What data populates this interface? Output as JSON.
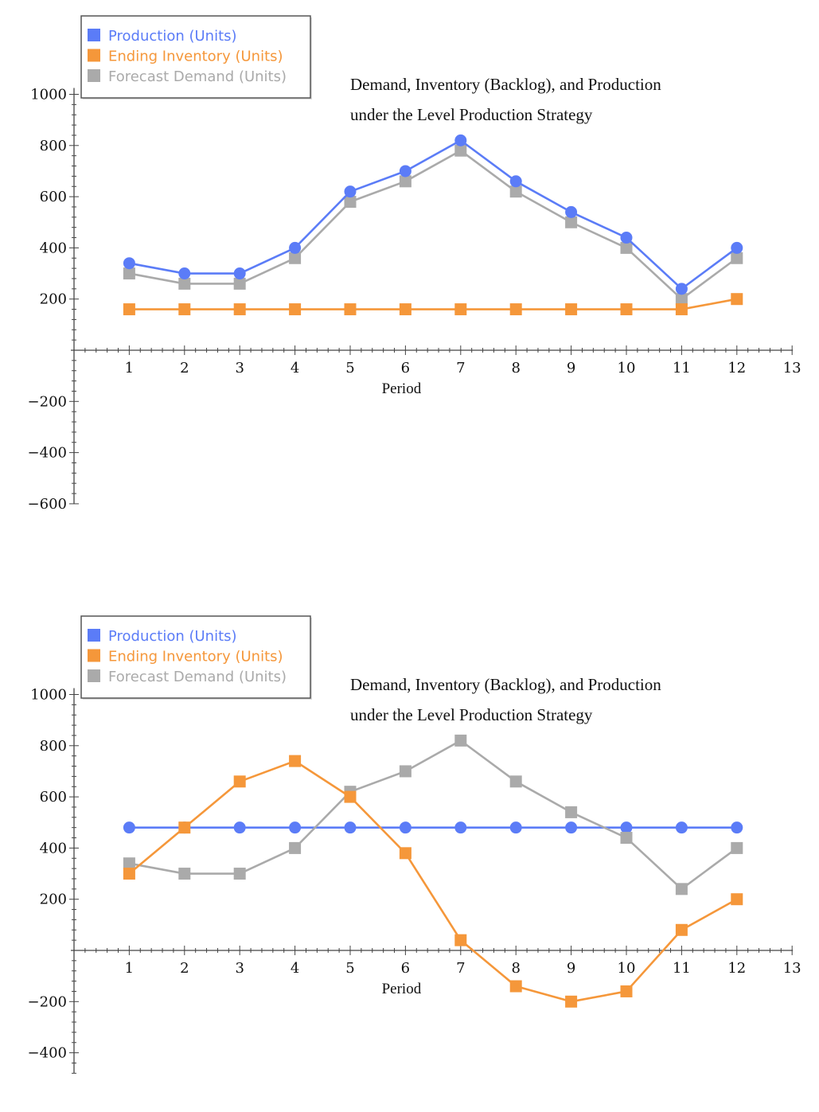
{
  "colors": {
    "production": "#5b7cf7",
    "inventory": "#f5973a",
    "demand": "#aaaaaa",
    "axis": "#444444",
    "legend_border": "#555555"
  },
  "chart_data": [
    {
      "type": "line",
      "title_line1": "Demand, Inventory (Backlog), and Production",
      "title_line2": "under the Level Production Strategy",
      "xlabel": "Period",
      "ylabel": "",
      "xlim": [
        0,
        13
      ],
      "ylim": [
        -600,
        1000
      ],
      "x_ticks": [
        1,
        2,
        3,
        4,
        5,
        6,
        7,
        8,
        9,
        10,
        11,
        12,
        13
      ],
      "y_ticks": [
        -600,
        -400,
        -200,
        200,
        400,
        600,
        800,
        1000
      ],
      "y_tick_labels": [
        "−600",
        "−400",
        "−200",
        "200",
        "400",
        "600",
        "800",
        "1000"
      ],
      "legend": [
        "Production (Units)",
        "Ending Inventory (Units)",
        "Forecast Demand (Units)"
      ],
      "series": [
        {
          "name": "Production (Units)",
          "marker": "circle",
          "color": "#5b7cf7",
          "x": [
            1,
            2,
            3,
            4,
            5,
            6,
            7,
            8,
            9,
            10,
            11,
            12
          ],
          "values": [
            340,
            300,
            300,
            400,
            620,
            700,
            820,
            660,
            540,
            440,
            240,
            400
          ]
        },
        {
          "name": "Ending Inventory (Units)",
          "marker": "square",
          "color": "#f5973a",
          "x": [
            1,
            2,
            3,
            4,
            5,
            6,
            7,
            8,
            9,
            10,
            11,
            12
          ],
          "values": [
            160,
            160,
            160,
            160,
            160,
            160,
            160,
            160,
            160,
            160,
            160,
            200
          ]
        },
        {
          "name": "Forecast Demand (Units)",
          "marker": "square",
          "color": "#aaaaaa",
          "x": [
            1,
            2,
            3,
            4,
            5,
            6,
            7,
            8,
            9,
            10,
            11,
            12
          ],
          "values": [
            300,
            260,
            260,
            360,
            580,
            660,
            780,
            620,
            500,
            400,
            200,
            360
          ]
        }
      ]
    },
    {
      "type": "line",
      "title_line1": "Demand, Inventory (Backlog), and Production",
      "title_line2": "under the Level Production Strategy",
      "xlabel": "Period",
      "ylabel": "",
      "xlim": [
        0,
        13
      ],
      "ylim": [
        -480,
        1000
      ],
      "x_ticks": [
        1,
        2,
        3,
        4,
        5,
        6,
        7,
        8,
        9,
        10,
        11,
        12,
        13
      ],
      "y_ticks": [
        -400,
        -200,
        200,
        400,
        600,
        800,
        1000
      ],
      "y_tick_labels": [
        "−400",
        "−200",
        "200",
        "400",
        "600",
        "800",
        "1000"
      ],
      "legend": [
        "Production (Units)",
        "Ending Inventory (Units)",
        "Forecast Demand (Units)"
      ],
      "series": [
        {
          "name": "Production (Units)",
          "marker": "circle",
          "color": "#5b7cf7",
          "x": [
            1,
            2,
            3,
            4,
            5,
            6,
            7,
            8,
            9,
            10,
            11,
            12
          ],
          "values": [
            480,
            480,
            480,
            480,
            480,
            480,
            480,
            480,
            480,
            480,
            480,
            480
          ]
        },
        {
          "name": "Ending Inventory (Units)",
          "marker": "square",
          "color": "#f5973a",
          "x": [
            1,
            2,
            3,
            4,
            5,
            6,
            7,
            8,
            9,
            10,
            11,
            12
          ],
          "values": [
            300,
            480,
            660,
            740,
            600,
            380,
            40,
            -140,
            -200,
            -160,
            80,
            200
          ]
        },
        {
          "name": "Forecast Demand (Units)",
          "marker": "square",
          "color": "#aaaaaa",
          "x": [
            1,
            2,
            3,
            4,
            5,
            6,
            7,
            8,
            9,
            10,
            11,
            12
          ],
          "values": [
            340,
            300,
            300,
            400,
            620,
            700,
            820,
            660,
            540,
            440,
            240,
            400
          ]
        }
      ]
    }
  ]
}
